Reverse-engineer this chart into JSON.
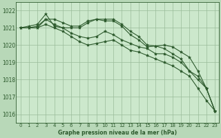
{
  "background_color": "#b8d8b8",
  "plot_bg_color": "#cce8cc",
  "grid_color": "#99bb99",
  "line_color": "#2d5a2d",
  "marker_color": "#2d5a2d",
  "xlabel": "Graphe pression niveau de la mer (hPa)",
  "ylim": [
    1015.5,
    1022.5
  ],
  "xlim": [
    -0.5,
    23.5
  ],
  "yticks": [
    1016,
    1017,
    1018,
    1019,
    1020,
    1021,
    1022
  ],
  "xticks": [
    0,
    1,
    2,
    3,
    4,
    5,
    6,
    7,
    8,
    9,
    10,
    11,
    12,
    13,
    14,
    15,
    16,
    17,
    18,
    19,
    20,
    21,
    22,
    23
  ],
  "series": [
    [
      1021.0,
      1021.1,
      1021.2,
      1021.8,
      1021.1,
      1021.0,
      1021.0,
      1021.0,
      1021.3,
      1021.5,
      1021.4,
      1021.4,
      1021.1,
      1020.6,
      1020.3,
      1019.9,
      1019.95,
      1020.0,
      1019.9,
      1019.6,
      1019.3,
      1018.5,
      1017.5,
      1016.2
    ],
    [
      1021.0,
      1021.0,
      1021.1,
      1021.5,
      1021.5,
      1021.3,
      1021.1,
      1021.1,
      1021.4,
      1021.5,
      1021.5,
      1021.5,
      1021.2,
      1020.8,
      1020.5,
      1020.0,
      1019.95,
      1019.8,
      1019.5,
      1019.2,
      1018.5,
      1018.0,
      1017.5,
      1016.2
    ],
    [
      1021.0,
      1021.0,
      1021.0,
      1021.5,
      1021.2,
      1021.0,
      1020.7,
      1020.5,
      1020.4,
      1020.5,
      1020.8,
      1020.6,
      1020.3,
      1020.1,
      1019.9,
      1019.8,
      1019.5,
      1019.5,
      1019.3,
      1019.0,
      1018.5,
      1018.2,
      1017.5,
      1016.2
    ],
    [
      1021.0,
      1021.0,
      1021.0,
      1021.2,
      1021.0,
      1020.8,
      1020.5,
      1020.2,
      1020.0,
      1020.1,
      1020.2,
      1020.3,
      1020.0,
      1019.7,
      1019.6,
      1019.4,
      1019.2,
      1019.0,
      1018.8,
      1018.5,
      1018.2,
      1017.5,
      1016.8,
      1016.2
    ]
  ]
}
